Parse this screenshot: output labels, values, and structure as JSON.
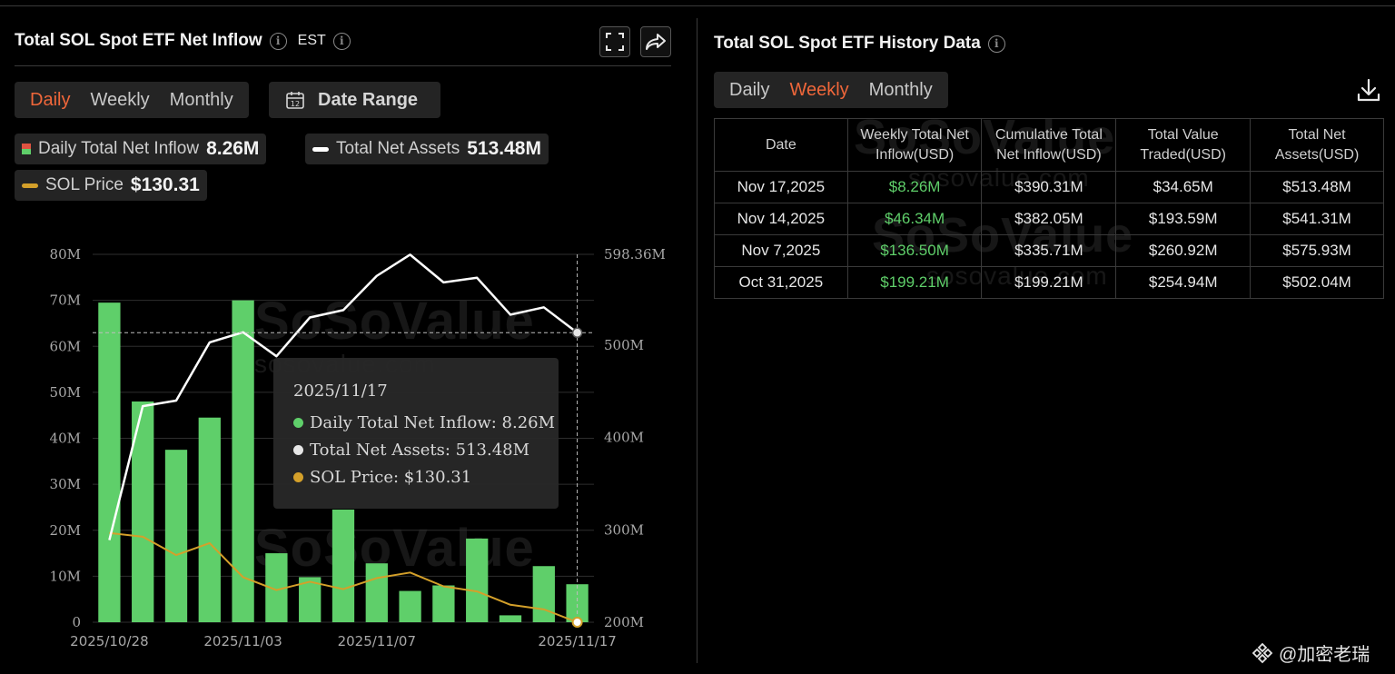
{
  "left_panel": {
    "title": "Total SOL Spot ETF Net Inflow",
    "timezone": "EST",
    "period_tabs": [
      {
        "label": "Daily",
        "active": true
      },
      {
        "label": "Weekly",
        "active": false
      },
      {
        "label": "Monthly",
        "active": false
      }
    ],
    "date_range_label": "Date Range",
    "legend": {
      "inflow_name": "Daily Total Net Inflow",
      "inflow_value": "8.26M",
      "assets_name": "Total Net Assets",
      "assets_value": "513.48M",
      "price_name": "SOL Price",
      "price_value": "$130.31"
    },
    "tooltip": {
      "date": "2025/11/17",
      "inflow": "Daily Total Net Inflow: 8.26M",
      "assets": "Total Net Assets: 513.48M",
      "price": "SOL Price: $130.31"
    },
    "watermark": "SoSoValue",
    "watermark_url": "sosovalue.com"
  },
  "chart_data": {
    "type": "bar",
    "x_tick_labels": [
      "2025/10/28",
      "2025/11/03",
      "2025/11/07",
      "2025/11/17"
    ],
    "x_tick_index": [
      0,
      4,
      8,
      14
    ],
    "y_left_ticks": [
      "0",
      "10M",
      "20M",
      "30M",
      "40M",
      "50M",
      "60M",
      "70M",
      "80M"
    ],
    "y_left_range": [
      0,
      80
    ],
    "y_right_ticks": [
      "200M",
      "300M",
      "400M",
      "500M",
      "598.36M"
    ],
    "y_right_range": [
      200,
      598.36
    ],
    "series": [
      {
        "name": "Daily Total Net Inflow",
        "type": "bar",
        "color": "#5fcf6a",
        "values": [
          69.5,
          48,
          37.5,
          44.5,
          70,
          15,
          9.8,
          24.5,
          12.8,
          6.8,
          8,
          18.2,
          1.5,
          12.2,
          8.26
        ]
      },
      {
        "name": "Total Net Assets",
        "type": "line",
        "color": "#ffffff",
        "values": [
          289,
          434,
          440,
          503,
          514,
          488,
          530,
          538,
          575,
          598,
          568,
          573,
          533,
          541,
          513.48
        ]
      },
      {
        "name": "SOL Price",
        "type": "line",
        "color": "#d4a02a",
        "values": [
          19.4,
          18.6,
          14.6,
          17.2,
          9.8,
          7,
          8.8,
          7.2,
          9.6,
          10.8,
          7.8,
          6.7,
          3.8,
          2.8,
          0
        ]
      }
    ],
    "highlight_index": 14,
    "grid": true
  },
  "right_panel": {
    "title": "Total SOL Spot ETF History Data",
    "period_tabs": [
      {
        "label": "Daily",
        "active": false
      },
      {
        "label": "Weekly",
        "active": true
      },
      {
        "label": "Monthly",
        "active": false
      }
    ],
    "table": {
      "headers": [
        [
          "Date",
          ""
        ],
        [
          "Weekly Total Net",
          "Inflow(USD)"
        ],
        [
          "Cumulative Total",
          "Net Inflow(USD)"
        ],
        [
          "Total Value",
          "Traded(USD)"
        ],
        [
          "Total Net",
          "Assets(USD)"
        ]
      ],
      "rows": [
        [
          "Nov 17,2025",
          "$8.26M",
          "$390.31M",
          "$34.65M",
          "$513.48M"
        ],
        [
          "Nov 14,2025",
          "$46.34M",
          "$382.05M",
          "$193.59M",
          "$541.31M"
        ],
        [
          "Nov 7,2025",
          "$136.50M",
          "$335.71M",
          "$260.92M",
          "$575.93M"
        ],
        [
          "Oct 31,2025",
          "$199.21M",
          "$199.21M",
          "$254.94M",
          "$502.04M"
        ]
      ]
    }
  },
  "footer": {
    "label": "@加密老瑞"
  },
  "colors": {
    "accent": "#f0673a",
    "inflow_green": "#5fcf6a",
    "price_gold": "#d4a02a"
  }
}
